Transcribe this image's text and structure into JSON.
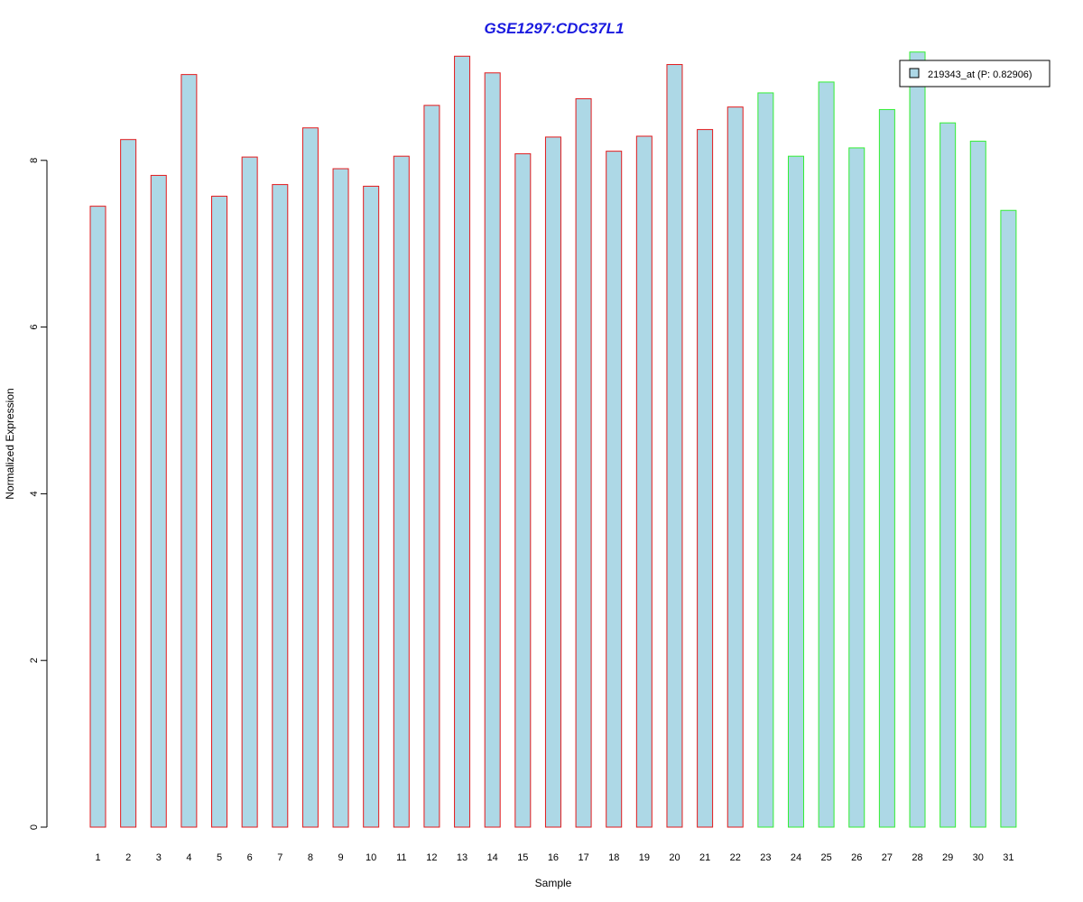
{
  "chart_data": {
    "type": "bar",
    "title": "GSE1297:CDC37L1",
    "xlabel": "Sample",
    "ylabel": "Normalized Expression",
    "categories": [
      "1",
      "2",
      "3",
      "4",
      "5",
      "6",
      "7",
      "8",
      "9",
      "10",
      "11",
      "12",
      "13",
      "14",
      "15",
      "16",
      "17",
      "18",
      "19",
      "20",
      "21",
      "22",
      "23",
      "24",
      "25",
      "26",
      "27",
      "28",
      "29",
      "30",
      "31"
    ],
    "series": [
      {
        "name": "219343_at (P: 0.82906)",
        "values": [
          7.45,
          8.25,
          7.82,
          9.03,
          7.57,
          8.04,
          7.71,
          8.39,
          7.9,
          7.69,
          8.05,
          8.66,
          9.25,
          9.05,
          8.08,
          8.28,
          8.74,
          8.11,
          8.29,
          9.15,
          8.37,
          8.64,
          8.81,
          8.05,
          8.94,
          8.15,
          8.61,
          9.3,
          8.45,
          8.23,
          7.4
        ]
      }
    ],
    "groups": [
      {
        "from": 1,
        "to": 22,
        "border_color": "#e31a1c"
      },
      {
        "from": 23,
        "to": 31,
        "border_color": "#33ee33"
      }
    ],
    "ylim": [
      0,
      9.3
    ],
    "yticks": [
      0,
      2,
      4,
      6,
      8
    ],
    "grid": false,
    "legend_position": "top-right",
    "colors": {
      "title": "#1a1adf",
      "bar_fill": "#add8e6",
      "axis": "#000000"
    }
  }
}
